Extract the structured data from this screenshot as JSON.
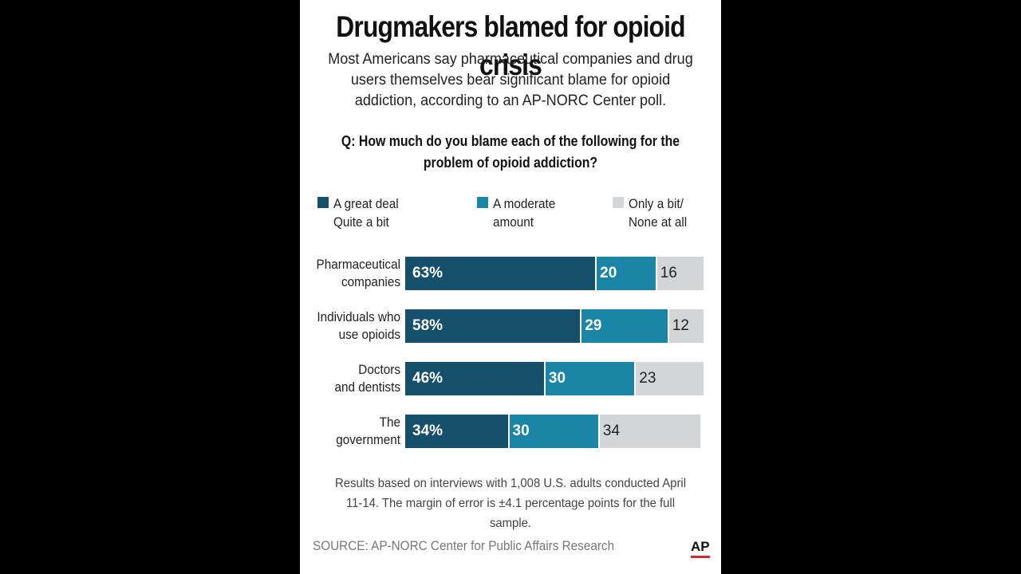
{
  "chart_data": {
    "type": "bar",
    "stacked": true,
    "orientation": "horizontal",
    "title": "Drugmakers blamed for opioid crisis",
    "subtitle": "Most Americans say pharmaceutical companies and drug users themselves bear significant blame for opioid addiction,  according to an AP-NORC Center poll.",
    "question": "Q: How much do you blame each of the following for the problem of opioid addiction?",
    "categories": [
      "Pharmaceutical\ncompanies",
      "Individuals who\nuse opioids",
      "Doctors\nand dentists",
      "The\ngovernment"
    ],
    "series": [
      {
        "name": "A great deal\nQuite a bit",
        "color": "#154f6b",
        "values": [
          63,
          58,
          46,
          34
        ],
        "labels": [
          "63%",
          "58%",
          "46%",
          "34%"
        ]
      },
      {
        "name": "A moderate\namount",
        "color": "#1b85a8",
        "values": [
          20,
          29,
          30,
          30
        ],
        "labels": [
          "20",
          "29",
          "30",
          "30"
        ]
      },
      {
        "name": "Only a bit/\nNone at all",
        "color": "#d3d5d6",
        "values": [
          16,
          12,
          23,
          34
        ],
        "labels": [
          "16",
          "12",
          "23",
          "34"
        ]
      }
    ],
    "xlim": [
      0,
      100
    ],
    "grid": false,
    "legend_position": "top",
    "note": "Results based on interviews with 1,008 U.S. adults conducted April 11-14. The margin of error is ±4.1 percentage points for the full sample.",
    "source": "SOURCE: AP-NORC Center for Public Affairs Research",
    "logo": "AP"
  }
}
